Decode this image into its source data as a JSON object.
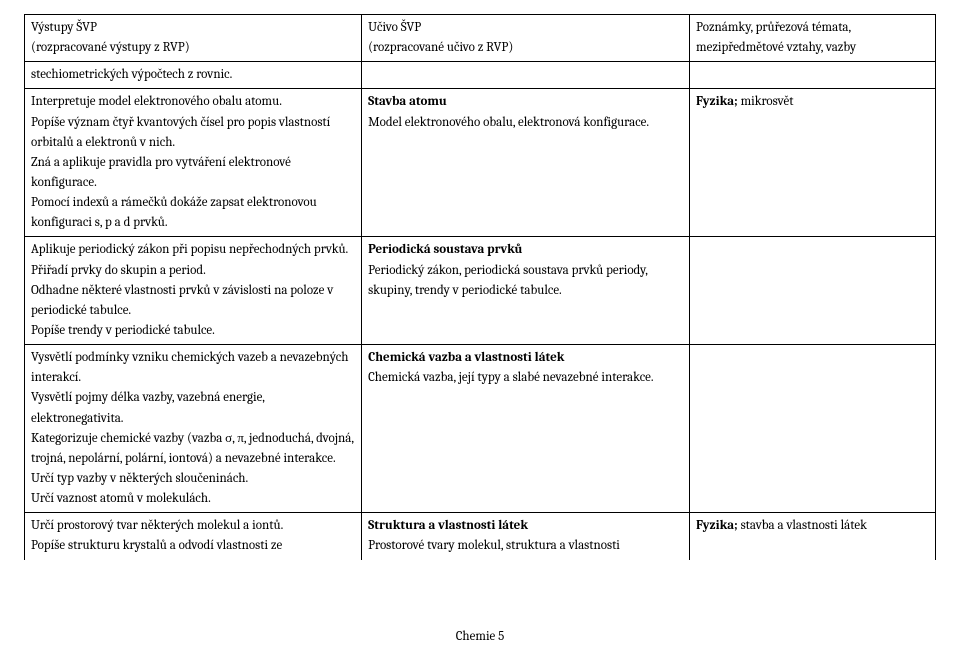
{
  "header": {
    "col1_line1": "Výstupy ŠVP",
    "col1_line2": "(rozpracované výstupy z RVP)",
    "col2_line1": "Učivo ŠVP",
    "col2_line2": "(rozpracované učivo z RVP)",
    "col3_line1": "Poznámky, průřezová témata,",
    "col3_line2": "mezipředmětové vztahy, vazby"
  },
  "rows": [
    {
      "c1": "stechiometrických výpočtech z rovnic.",
      "c2": "",
      "c3": ""
    },
    {
      "c1": "Interpretuje model elektronového obalu atomu.\nPopíše význam čtyř kvantových čísel pro popis vlastností orbitalů a elektronů v nich.\nZná a aplikuje pravidla pro vytváření elektronové konfigurace.\nPomocí indexů a rámečků dokáže zapsat elektronovou konfiguraci s, p a d prvků.",
      "c2_title": "Stavba atomu",
      "c2_rest": "Model elektronového obalu, elektronová konfigurace.",
      "c3_prefix": "Fyzika;",
      "c3_rest": " mikrosvět"
    },
    {
      "c1": "Aplikuje periodický zákon při popisu nepřechodných prvků.\nPřiřadí prvky do skupin a period.\nOdhadne některé vlastnosti prvků v závislosti na poloze v periodické tabulce.\nPopíše trendy v periodické tabulce.",
      "c2_title": "Periodická soustava prvků",
      "c2_rest": "Periodický zákon, periodická soustava prvků periody, skupiny, trendy v periodické tabulce.",
      "c3": ""
    },
    {
      "c1": "Vysvětlí podmínky vzniku chemických vazeb a nevazebných interakcí.\nVysvětlí pojmy délka vazby, vazebná energie, elektronegativita.\nKategorizuje chemické vazby (vazba σ, π, jednoduchá, dvojná, trojná, nepolární, polární, iontová) a nevazebné interakce.\nUrčí typ vazby v některých sloučeninách.\nUrčí vaznost atomů v molekulách.",
      "c2_title": "Chemická vazba a vlastnosti látek",
      "c2_rest": "Chemická vazba, její typy a slabé nevazebné interakce.",
      "c3": ""
    },
    {
      "c1": "Určí prostorový tvar některých molekul a iontů.\nPopíše strukturu krystalů a odvodí vlastnosti ze",
      "c2_title": "Struktura a vlastnosti látek",
      "c2_rest": "Prostorové tvary molekul, struktura a vlastnosti",
      "c3_prefix": "Fyzika;",
      "c3_rest": " stavba a vlastnosti látek"
    }
  ],
  "footer": "Chemie 5"
}
